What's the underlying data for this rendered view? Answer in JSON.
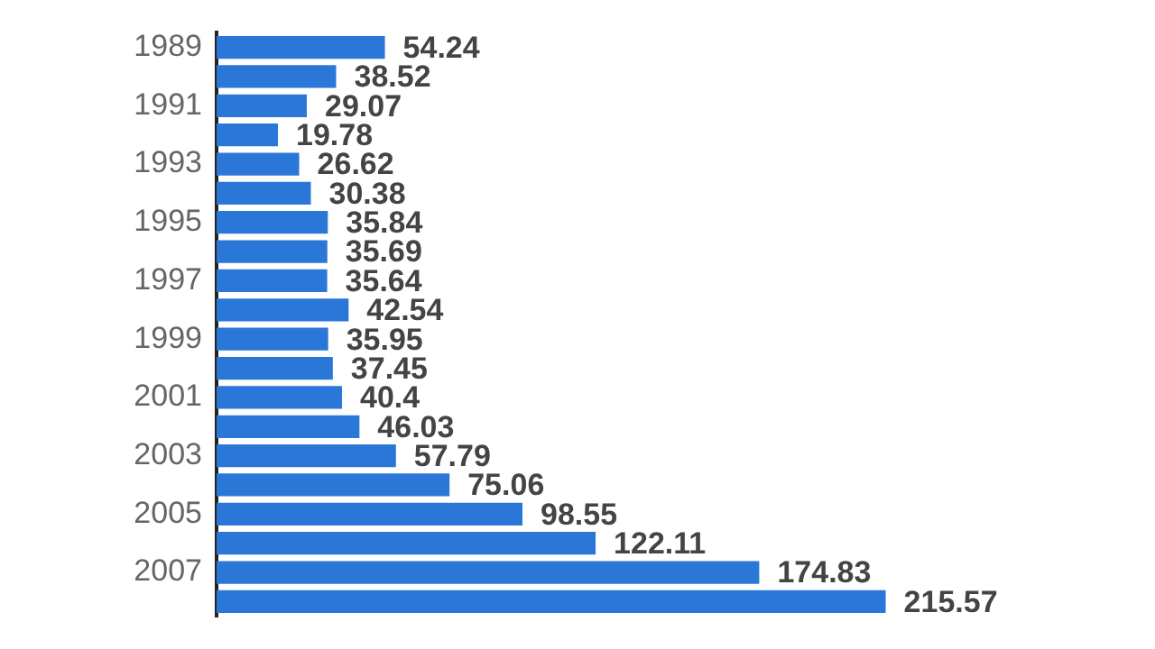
{
  "chart_data": {
    "type": "bar",
    "orientation": "horizontal",
    "categories": [
      "1989",
      null,
      "1991",
      null,
      "1993",
      null,
      "1995",
      null,
      "1997",
      null,
      "1999",
      null,
      "2001",
      null,
      "2003",
      null,
      "2005",
      null,
      "2007",
      null
    ],
    "values": [
      54.24,
      38.52,
      29.07,
      19.78,
      26.62,
      30.38,
      35.84,
      35.69,
      35.64,
      42.54,
      35.95,
      37.45,
      40.4,
      46.03,
      57.79,
      75.06,
      98.55,
      122.11,
      174.83,
      215.57
    ],
    "color": "#2b77d8",
    "tick_labels": "y",
    "data_labels": true
  }
}
